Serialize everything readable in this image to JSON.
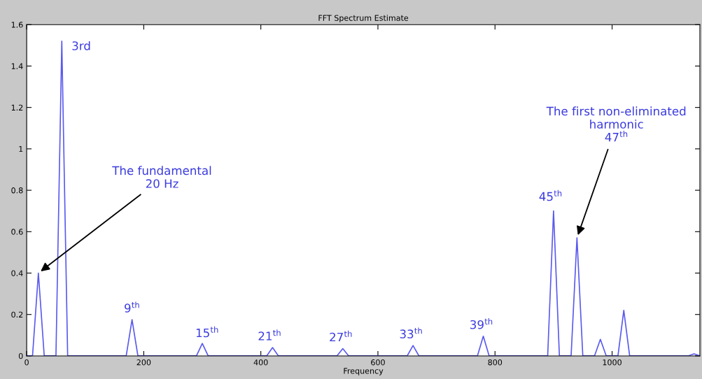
{
  "chart_data": {
    "type": "line",
    "title": "FFT Spectrum Estimate",
    "xlabel": "Frequency",
    "x": [
      0,
      10,
      20,
      30,
      50,
      60,
      70,
      170,
      180,
      190,
      290,
      300,
      310,
      410,
      420,
      430,
      530,
      540,
      550,
      650,
      660,
      670,
      770,
      780,
      790,
      890,
      900,
      910,
      930,
      940,
      950,
      970,
      980,
      990,
      1010,
      1020,
      1030,
      1130,
      1140,
      1150
    ],
    "series": [
      {
        "color": "#5a5aef",
        "values": [
          0,
          0,
          0.4,
          0,
          0,
          1.52,
          0,
          0,
          0.175,
          0,
          0,
          0.06,
          0,
          0,
          0.04,
          0,
          0,
          0.035,
          0,
          0,
          0.05,
          0,
          0,
          0.095,
          0,
          0,
          0.7,
          0,
          0,
          0.57,
          0,
          0,
          0.08,
          0,
          0,
          0.22,
          0,
          0,
          0.01,
          0
        ]
      }
    ],
    "xlim": [
      0,
      1150
    ],
    "xticks": [
      0,
      200,
      400,
      600,
      800,
      1000
    ],
    "ylim": [
      0,
      1.6
    ],
    "yticks": [
      0,
      0.2,
      0.4,
      0.6,
      0.8,
      1,
      1.2,
      1.4,
      1.6
    ],
    "grid": false,
    "legend": false,
    "marker": "none",
    "line_style": "solid",
    "annotations": [
      {
        "text": "3rd",
        "x": 60,
        "y": 1.52
      },
      {
        "text": "The fundamental\n20 Hz",
        "x": 20,
        "y": 0.4
      },
      {
        "text": "9$^{th}$",
        "x": 180,
        "y": 0.175
      },
      {
        "text": "15$^{th}$",
        "x": 300,
        "y": 0.06
      },
      {
        "text": "21$^{th}$",
        "x": 420,
        "y": 0.04
      },
      {
        "text": "27$^{th}$",
        "x": 540,
        "y": 0.035
      },
      {
        "text": "33$^{th}$",
        "x": 660,
        "y": 0.05
      },
      {
        "text": "39$^{th}$",
        "x": 780,
        "y": 0.095
      },
      {
        "text": "45$^{th}$",
        "x": 900,
        "y": 0.7
      },
      {
        "text": "The first non-eliminated\nharmonic\n47$^{th}$",
        "x": 940,
        "y": 0.57
      }
    ]
  }
}
